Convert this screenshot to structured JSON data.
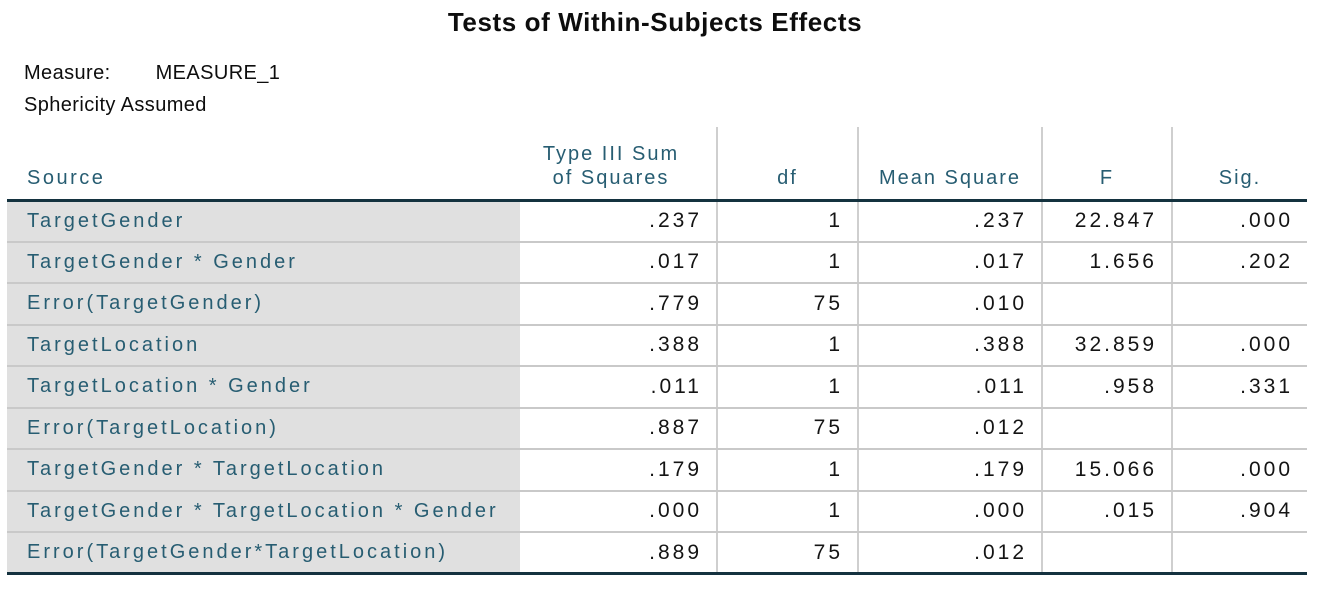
{
  "title": "Tests of Within-Subjects Effects",
  "measure": {
    "label": "Measure:",
    "value": "MEASURE_1"
  },
  "sphericity": "Sphericity Assumed",
  "table": {
    "header": {
      "source": "Source",
      "ss_line1": "Type III Sum",
      "ss_line2": "of Squares",
      "df": "df",
      "mean_square": "Mean Square",
      "f": "F",
      "sig": "Sig."
    }
  },
  "colors": {
    "header_text": "#275d72",
    "row_label_text": "#275d72",
    "value_text": "#141414",
    "source_column_background": "#e0e0e0",
    "thick_rule": "#14323f",
    "row_separator": "#c9c9c9",
    "column_separator": "#cfcfcf",
    "background": "#ffffff"
  },
  "chart_data": {
    "type": "table",
    "title": "Tests of Within-Subjects Effects",
    "subtitle_lines": [
      "Measure:   MEASURE_1",
      "Sphericity Assumed"
    ],
    "columns": [
      "Source",
      "Type III Sum of Squares",
      "df",
      "Mean Square",
      "F",
      "Sig."
    ],
    "rows": [
      {
        "source": "TargetGender",
        "ss": ".237",
        "df": "1",
        "ms": ".237",
        "f": "22.847",
        "sig": ".000"
      },
      {
        "source": "TargetGender * Gender",
        "ss": ".017",
        "df": "1",
        "ms": ".017",
        "f": "1.656",
        "sig": ".202"
      },
      {
        "source": "Error(TargetGender)",
        "ss": ".779",
        "df": "75",
        "ms": ".010",
        "f": "",
        "sig": ""
      },
      {
        "source": "TargetLocation",
        "ss": ".388",
        "df": "1",
        "ms": ".388",
        "f": "32.859",
        "sig": ".000"
      },
      {
        "source": "TargetLocation * Gender",
        "ss": ".011",
        "df": "1",
        "ms": ".011",
        "f": ".958",
        "sig": ".331"
      },
      {
        "source": "Error(TargetLocation)",
        "ss": ".887",
        "df": "75",
        "ms": ".012",
        "f": "",
        "sig": ""
      },
      {
        "source": "TargetGender * TargetLocation",
        "ss": ".179",
        "df": "1",
        "ms": ".179",
        "f": "15.066",
        "sig": ".000"
      },
      {
        "source": "TargetGender * TargetLocation * Gender",
        "ss": ".000",
        "df": "1",
        "ms": ".000",
        "f": ".015",
        "sig": ".904"
      },
      {
        "source": "Error(TargetGender*TargetLocation)",
        "ss": ".889",
        "df": "75",
        "ms": ".012",
        "f": "",
        "sig": ""
      }
    ]
  }
}
